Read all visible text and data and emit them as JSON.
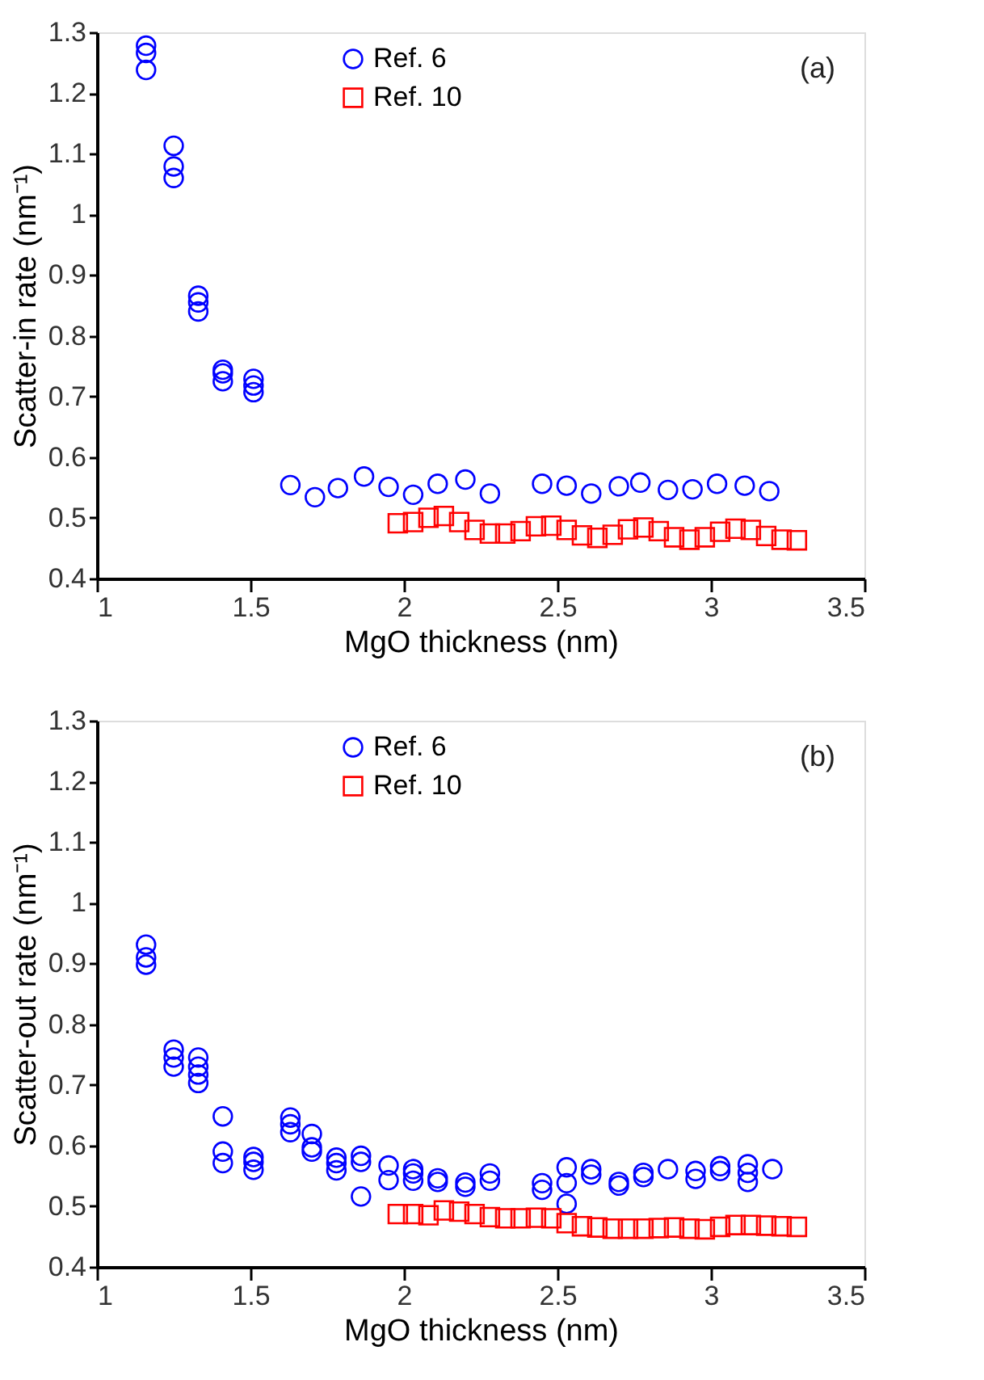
{
  "chart_data": [
    {
      "type": "scatter",
      "xlabel": "MgO thickness (nm)",
      "ylabel": "Scatter-in rate (nm⁻¹)",
      "xlim": [
        1,
        3.5
      ],
      "xticks": [
        1,
        1.5,
        2,
        2.5,
        3,
        3.5
      ],
      "ylim": [
        0.4,
        1.3
      ],
      "yticks": [
        0.4,
        0.5,
        0.6,
        0.7,
        0.8,
        0.9,
        1,
        1.1,
        1.2,
        1.3
      ],
      "grid": false,
      "legend": "top left",
      "annotations": [
        "(a)"
      ],
      "series": [
        {
          "name": "Ref. 6",
          "color": "#0000ff",
          "marker": "circle",
          "x": [
            1.16,
            1.16,
            1.16,
            1.25,
            1.25,
            1.25,
            1.33,
            1.33,
            1.33,
            1.41,
            1.41,
            1.41,
            1.51,
            1.51,
            1.51,
            1.63,
            1.71,
            1.785,
            1.87,
            1.95,
            2.03,
            2.11,
            2.2,
            2.28,
            2.45,
            2.53,
            2.61,
            2.7,
            2.77,
            2.86,
            2.94,
            3.02,
            3.11,
            3.19
          ],
          "values": [
            1.278,
            1.266,
            1.238,
            1.113,
            1.079,
            1.06,
            0.866,
            0.855,
            0.84,
            0.744,
            0.738,
            0.725,
            0.729,
            0.718,
            0.707,
            0.554,
            0.534,
            0.549,
            0.568,
            0.551,
            0.538,
            0.556,
            0.563,
            0.54,
            0.556,
            0.553,
            0.54,
            0.552,
            0.558,
            0.546,
            0.547,
            0.556,
            0.553,
            0.544
          ]
        },
        {
          "name": "Ref. 10",
          "color": "#ff0000",
          "marker": "square",
          "x": [
            1.98,
            2.03,
            2.08,
            2.13,
            2.18,
            2.23,
            2.28,
            2.33,
            2.38,
            2.43,
            2.48,
            2.53,
            2.58,
            2.63,
            2.68,
            2.73,
            2.78,
            2.83,
            2.88,
            2.93,
            2.98,
            3.03,
            3.08,
            3.13,
            3.18,
            3.23,
            3.28
          ],
          "values": [
            0.491,
            0.493,
            0.5,
            0.503,
            0.493,
            0.48,
            0.474,
            0.474,
            0.478,
            0.486,
            0.487,
            0.48,
            0.471,
            0.467,
            0.472,
            0.481,
            0.484,
            0.478,
            0.468,
            0.464,
            0.468,
            0.477,
            0.482,
            0.48,
            0.47,
            0.464,
            0.463
          ]
        }
      ]
    },
    {
      "type": "scatter",
      "xlabel": "MgO thickness (nm)",
      "ylabel": "Scatter-out rate (nm⁻¹)",
      "xlim": [
        1,
        3.5
      ],
      "xticks": [
        1,
        1.5,
        2,
        2.5,
        3,
        3.5
      ],
      "ylim": [
        0.4,
        1.3
      ],
      "yticks": [
        0.4,
        0.5,
        0.6,
        0.7,
        0.8,
        0.9,
        1,
        1.1,
        1.2,
        1.3
      ],
      "grid": false,
      "legend": "top left",
      "annotations": [
        "(b)"
      ],
      "series": [
        {
          "name": "Ref. 6",
          "color": "#0000ff",
          "marker": "circle",
          "x": [
            1.16,
            1.16,
            1.16,
            1.25,
            1.25,
            1.25,
            1.33,
            1.33,
            1.33,
            1.33,
            1.41,
            1.41,
            1.41,
            1.51,
            1.51,
            1.51,
            1.63,
            1.63,
            1.63,
            1.7,
            1.7,
            1.7,
            1.78,
            1.78,
            1.78,
            1.86,
            1.86,
            1.86,
            1.95,
            1.95,
            2.03,
            2.03,
            2.03,
            2.11,
            2.11,
            2.2,
            2.2,
            2.28,
            2.28,
            2.45,
            2.45,
            2.53,
            2.53,
            2.53,
            2.61,
            2.61,
            2.7,
            2.7,
            2.78,
            2.78,
            2.86,
            2.95,
            2.95,
            3.03,
            3.03,
            3.12,
            3.12,
            3.12,
            3.2
          ],
          "values": [
            0.931,
            0.91,
            0.898,
            0.758,
            0.745,
            0.73,
            0.745,
            0.73,
            0.717,
            0.703,
            0.648,
            0.59,
            0.571,
            0.581,
            0.573,
            0.56,
            0.646,
            0.635,
            0.622,
            0.619,
            0.597,
            0.59,
            0.58,
            0.571,
            0.559,
            0.583,
            0.573,
            0.516,
            0.567,
            0.543,
            0.561,
            0.554,
            0.542,
            0.546,
            0.54,
            0.539,
            0.532,
            0.554,
            0.542,
            0.538,
            0.527,
            0.564,
            0.538,
            0.504,
            0.561,
            0.552,
            0.54,
            0.534,
            0.555,
            0.548,
            0.561,
            0.558,
            0.545,
            0.566,
            0.558,
            0.569,
            0.555,
            0.54,
            0.561
          ]
        },
        {
          "name": "Ref. 10",
          "color": "#ff0000",
          "marker": "square",
          "x": [
            1.98,
            2.03,
            2.08,
            2.13,
            2.18,
            2.23,
            2.28,
            2.33,
            2.38,
            2.43,
            2.48,
            2.53,
            2.58,
            2.63,
            2.68,
            2.73,
            2.78,
            2.83,
            2.88,
            2.93,
            2.98,
            3.03,
            3.08,
            3.13,
            3.18,
            3.23,
            3.28
          ],
          "values": [
            0.487,
            0.487,
            0.485,
            0.493,
            0.491,
            0.487,
            0.482,
            0.48,
            0.48,
            0.481,
            0.48,
            0.472,
            0.467,
            0.465,
            0.463,
            0.463,
            0.463,
            0.464,
            0.465,
            0.463,
            0.462,
            0.466,
            0.469,
            0.469,
            0.468,
            0.467,
            0.466
          ]
        }
      ]
    }
  ]
}
